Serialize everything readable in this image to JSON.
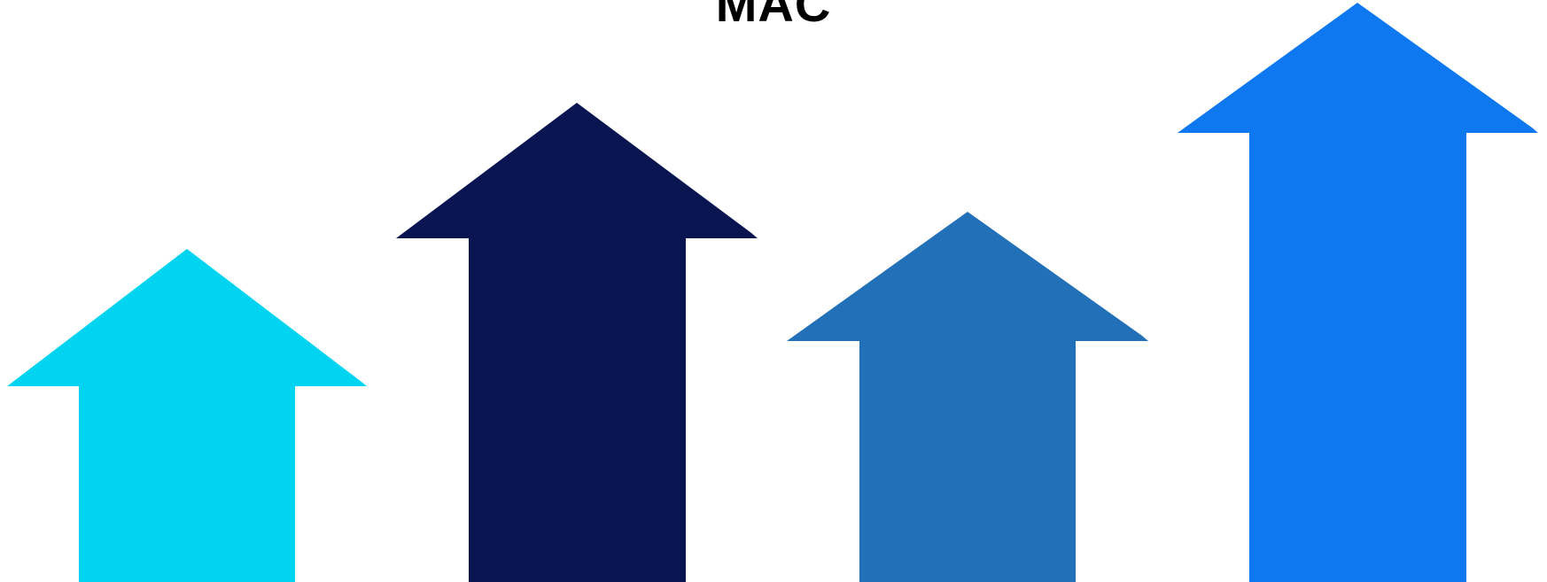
{
  "title": "MAC",
  "arrows": [
    {
      "color": "#00d4f0"
    },
    {
      "color": "#081551"
    },
    {
      "color": "#2270b8"
    },
    {
      "color": "#0e78f0"
    }
  ]
}
